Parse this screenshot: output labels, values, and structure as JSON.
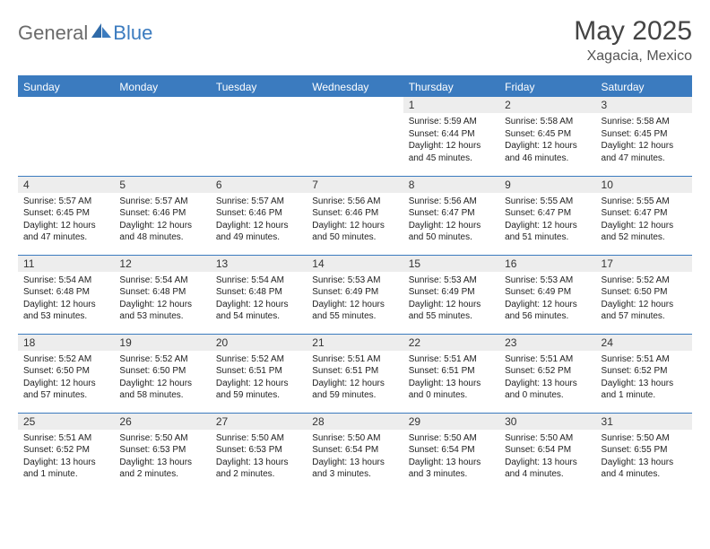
{
  "brand": {
    "part1": "General",
    "part2": "Blue"
  },
  "title": "May 2025",
  "location": "Xagacia, Mexico",
  "colors": {
    "header_bg": "#3b7bbf",
    "header_text": "#ffffff",
    "daynum_bg": "#ededed",
    "border": "#3b7bbf",
    "logo_gray": "#6b6b6b",
    "logo_blue": "#3b7bbf"
  },
  "dow": [
    "Sunday",
    "Monday",
    "Tuesday",
    "Wednesday",
    "Thursday",
    "Friday",
    "Saturday"
  ],
  "weeks": [
    [
      {
        "n": "",
        "empty": true
      },
      {
        "n": "",
        "empty": true
      },
      {
        "n": "",
        "empty": true
      },
      {
        "n": "",
        "empty": true
      },
      {
        "n": "1",
        "sr": "Sunrise: 5:59 AM",
        "ss": "Sunset: 6:44 PM",
        "d1": "Daylight: 12 hours",
        "d2": "and 45 minutes."
      },
      {
        "n": "2",
        "sr": "Sunrise: 5:58 AM",
        "ss": "Sunset: 6:45 PM",
        "d1": "Daylight: 12 hours",
        "d2": "and 46 minutes."
      },
      {
        "n": "3",
        "sr": "Sunrise: 5:58 AM",
        "ss": "Sunset: 6:45 PM",
        "d1": "Daylight: 12 hours",
        "d2": "and 47 minutes."
      }
    ],
    [
      {
        "n": "4",
        "sr": "Sunrise: 5:57 AM",
        "ss": "Sunset: 6:45 PM",
        "d1": "Daylight: 12 hours",
        "d2": "and 47 minutes."
      },
      {
        "n": "5",
        "sr": "Sunrise: 5:57 AM",
        "ss": "Sunset: 6:46 PM",
        "d1": "Daylight: 12 hours",
        "d2": "and 48 minutes."
      },
      {
        "n": "6",
        "sr": "Sunrise: 5:57 AM",
        "ss": "Sunset: 6:46 PM",
        "d1": "Daylight: 12 hours",
        "d2": "and 49 minutes."
      },
      {
        "n": "7",
        "sr": "Sunrise: 5:56 AM",
        "ss": "Sunset: 6:46 PM",
        "d1": "Daylight: 12 hours",
        "d2": "and 50 minutes."
      },
      {
        "n": "8",
        "sr": "Sunrise: 5:56 AM",
        "ss": "Sunset: 6:47 PM",
        "d1": "Daylight: 12 hours",
        "d2": "and 50 minutes."
      },
      {
        "n": "9",
        "sr": "Sunrise: 5:55 AM",
        "ss": "Sunset: 6:47 PM",
        "d1": "Daylight: 12 hours",
        "d2": "and 51 minutes."
      },
      {
        "n": "10",
        "sr": "Sunrise: 5:55 AM",
        "ss": "Sunset: 6:47 PM",
        "d1": "Daylight: 12 hours",
        "d2": "and 52 minutes."
      }
    ],
    [
      {
        "n": "11",
        "sr": "Sunrise: 5:54 AM",
        "ss": "Sunset: 6:48 PM",
        "d1": "Daylight: 12 hours",
        "d2": "and 53 minutes."
      },
      {
        "n": "12",
        "sr": "Sunrise: 5:54 AM",
        "ss": "Sunset: 6:48 PM",
        "d1": "Daylight: 12 hours",
        "d2": "and 53 minutes."
      },
      {
        "n": "13",
        "sr": "Sunrise: 5:54 AM",
        "ss": "Sunset: 6:48 PM",
        "d1": "Daylight: 12 hours",
        "d2": "and 54 minutes."
      },
      {
        "n": "14",
        "sr": "Sunrise: 5:53 AM",
        "ss": "Sunset: 6:49 PM",
        "d1": "Daylight: 12 hours",
        "d2": "and 55 minutes."
      },
      {
        "n": "15",
        "sr": "Sunrise: 5:53 AM",
        "ss": "Sunset: 6:49 PM",
        "d1": "Daylight: 12 hours",
        "d2": "and 55 minutes."
      },
      {
        "n": "16",
        "sr": "Sunrise: 5:53 AM",
        "ss": "Sunset: 6:49 PM",
        "d1": "Daylight: 12 hours",
        "d2": "and 56 minutes."
      },
      {
        "n": "17",
        "sr": "Sunrise: 5:52 AM",
        "ss": "Sunset: 6:50 PM",
        "d1": "Daylight: 12 hours",
        "d2": "and 57 minutes."
      }
    ],
    [
      {
        "n": "18",
        "sr": "Sunrise: 5:52 AM",
        "ss": "Sunset: 6:50 PM",
        "d1": "Daylight: 12 hours",
        "d2": "and 57 minutes."
      },
      {
        "n": "19",
        "sr": "Sunrise: 5:52 AM",
        "ss": "Sunset: 6:50 PM",
        "d1": "Daylight: 12 hours",
        "d2": "and 58 minutes."
      },
      {
        "n": "20",
        "sr": "Sunrise: 5:52 AM",
        "ss": "Sunset: 6:51 PM",
        "d1": "Daylight: 12 hours",
        "d2": "and 59 minutes."
      },
      {
        "n": "21",
        "sr": "Sunrise: 5:51 AM",
        "ss": "Sunset: 6:51 PM",
        "d1": "Daylight: 12 hours",
        "d2": "and 59 minutes."
      },
      {
        "n": "22",
        "sr": "Sunrise: 5:51 AM",
        "ss": "Sunset: 6:51 PM",
        "d1": "Daylight: 13 hours",
        "d2": "and 0 minutes."
      },
      {
        "n": "23",
        "sr": "Sunrise: 5:51 AM",
        "ss": "Sunset: 6:52 PM",
        "d1": "Daylight: 13 hours",
        "d2": "and 0 minutes."
      },
      {
        "n": "24",
        "sr": "Sunrise: 5:51 AM",
        "ss": "Sunset: 6:52 PM",
        "d1": "Daylight: 13 hours",
        "d2": "and 1 minute."
      }
    ],
    [
      {
        "n": "25",
        "sr": "Sunrise: 5:51 AM",
        "ss": "Sunset: 6:52 PM",
        "d1": "Daylight: 13 hours",
        "d2": "and 1 minute."
      },
      {
        "n": "26",
        "sr": "Sunrise: 5:50 AM",
        "ss": "Sunset: 6:53 PM",
        "d1": "Daylight: 13 hours",
        "d2": "and 2 minutes."
      },
      {
        "n": "27",
        "sr": "Sunrise: 5:50 AM",
        "ss": "Sunset: 6:53 PM",
        "d1": "Daylight: 13 hours",
        "d2": "and 2 minutes."
      },
      {
        "n": "28",
        "sr": "Sunrise: 5:50 AM",
        "ss": "Sunset: 6:54 PM",
        "d1": "Daylight: 13 hours",
        "d2": "and 3 minutes."
      },
      {
        "n": "29",
        "sr": "Sunrise: 5:50 AM",
        "ss": "Sunset: 6:54 PM",
        "d1": "Daylight: 13 hours",
        "d2": "and 3 minutes."
      },
      {
        "n": "30",
        "sr": "Sunrise: 5:50 AM",
        "ss": "Sunset: 6:54 PM",
        "d1": "Daylight: 13 hours",
        "d2": "and 4 minutes."
      },
      {
        "n": "31",
        "sr": "Sunrise: 5:50 AM",
        "ss": "Sunset: 6:55 PM",
        "d1": "Daylight: 13 hours",
        "d2": "and 4 minutes."
      }
    ]
  ]
}
